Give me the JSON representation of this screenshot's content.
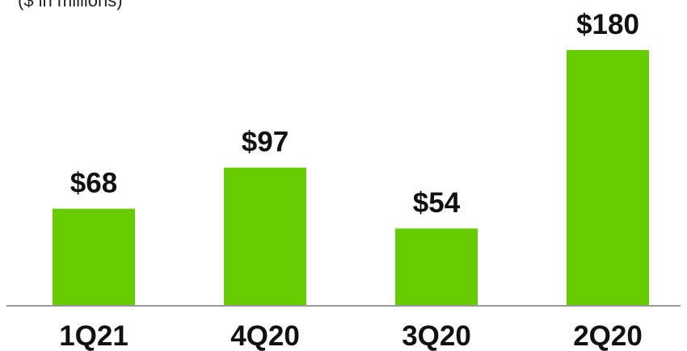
{
  "unit_note": "($ in millions)",
  "chart_data": {
    "type": "bar",
    "categories": [
      "1Q21",
      "4Q20",
      "3Q20",
      "2Q20"
    ],
    "values": [
      68,
      97,
      54,
      180
    ],
    "value_labels": [
      "$68",
      "$97",
      "$54",
      "$180"
    ],
    "title": "",
    "xlabel": "",
    "ylabel": "",
    "ylim": [
      0,
      180
    ],
    "grid": false,
    "bar_color": "#66cc00",
    "axis_color": "#999999"
  }
}
